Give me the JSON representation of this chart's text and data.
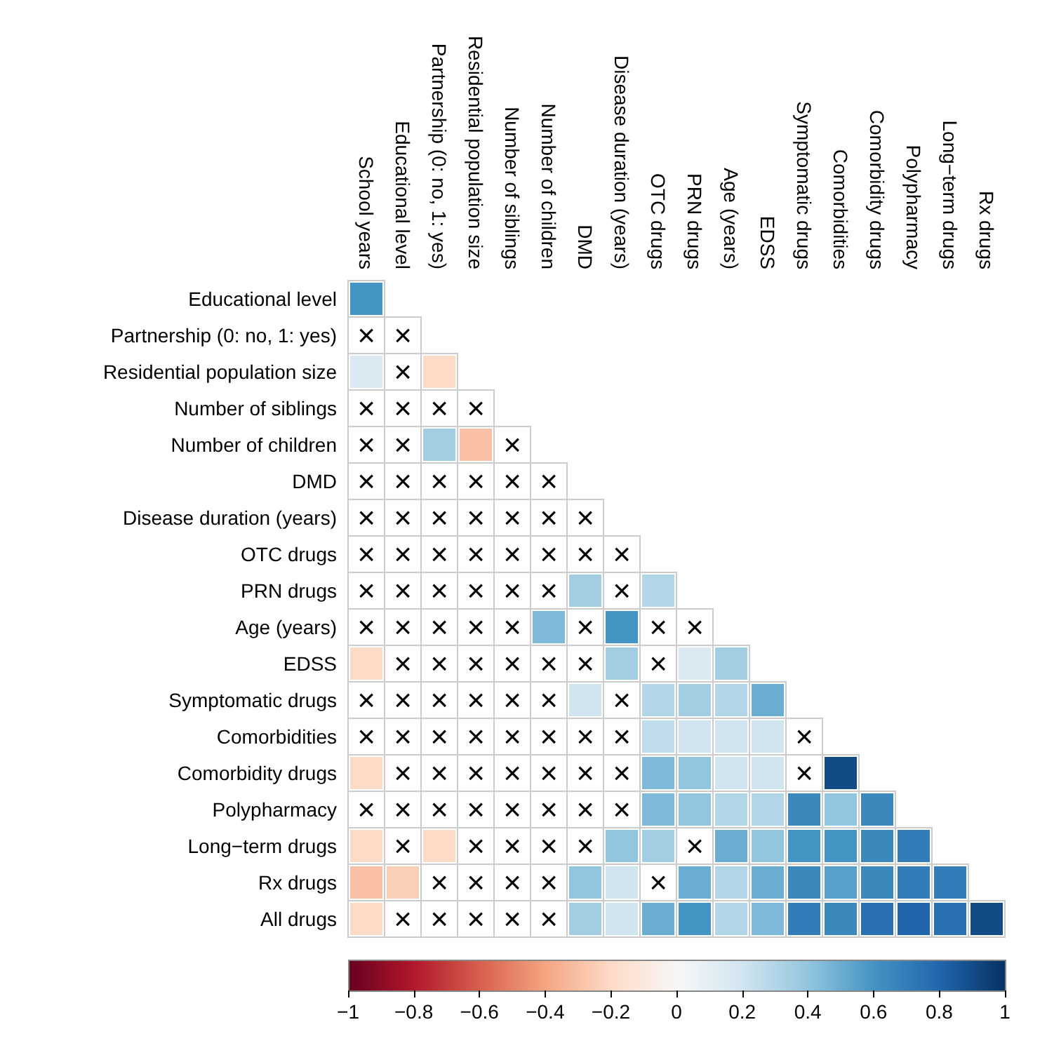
{
  "chart_data": {
    "type": "heatmap",
    "categories": [
      "School years",
      "Educational level",
      "Partnership (0: no, 1: yes)",
      "Residential population size",
      "Number of siblings",
      "Number of children",
      "DMD",
      "Disease duration (years)",
      "OTC drugs",
      "PRN drugs",
      "Age (years)",
      "EDSS",
      "Symptomatic drugs",
      "Comorbidities",
      "Comorbidity drugs",
      "Polypharmacy",
      "Long−term drugs",
      "Rx drugs"
    ],
    "y_categories": [
      "Educational level",
      "Partnership (0: no, 1: yes)",
      "Residential population size",
      "Number of siblings",
      "Number of children",
      "DMD",
      "Disease duration (years)",
      "OTC drugs",
      "PRN drugs",
      "Age (years)",
      "EDSS",
      "Symptomatic drugs",
      "Comorbidities",
      "Comorbidity drugs",
      "Polypharmacy",
      "Long−term drugs",
      "Rx drugs",
      "All drugs"
    ],
    "cells": [
      [
        0.6,
        null,
        null,
        null,
        null,
        null,
        null,
        null,
        null,
        null,
        null,
        null,
        null,
        null,
        null,
        null,
        null,
        null
      ],
      [
        null,
        null,
        null,
        null,
        null,
        null,
        null,
        null,
        null,
        null,
        null,
        null,
        null,
        null,
        null,
        null,
        null,
        null
      ],
      [
        0.15,
        null,
        -0.2,
        null,
        null,
        null,
        null,
        null,
        null,
        null,
        null,
        null,
        null,
        null,
        null,
        null,
        null,
        null
      ],
      [
        null,
        null,
        null,
        null,
        null,
        null,
        null,
        null,
        null,
        null,
        null,
        null,
        null,
        null,
        null,
        null,
        null,
        null
      ],
      [
        null,
        null,
        0.35,
        -0.3,
        null,
        null,
        null,
        null,
        null,
        null,
        null,
        null,
        null,
        null,
        null,
        null,
        null,
        null
      ],
      [
        null,
        null,
        null,
        null,
        null,
        null,
        null,
        null,
        null,
        null,
        null,
        null,
        null,
        null,
        null,
        null,
        null,
        null
      ],
      [
        null,
        null,
        null,
        null,
        null,
        null,
        null,
        null,
        null,
        null,
        null,
        null,
        null,
        null,
        null,
        null,
        null,
        null
      ],
      [
        null,
        null,
        null,
        null,
        null,
        null,
        null,
        null,
        null,
        null,
        null,
        null,
        null,
        null,
        null,
        null,
        null,
        null
      ],
      [
        null,
        null,
        null,
        null,
        null,
        null,
        0.35,
        null,
        0.3,
        null,
        null,
        null,
        null,
        null,
        null,
        null,
        null,
        null
      ],
      [
        null,
        null,
        null,
        null,
        null,
        0.45,
        null,
        0.6,
        null,
        null,
        null,
        null,
        null,
        null,
        null,
        null,
        null,
        null
      ],
      [
        -0.2,
        null,
        null,
        null,
        null,
        null,
        null,
        0.35,
        null,
        0.15,
        0.35,
        null,
        null,
        null,
        null,
        null,
        null,
        null
      ],
      [
        null,
        null,
        null,
        null,
        null,
        null,
        0.2,
        null,
        0.3,
        0.35,
        0.3,
        0.5,
        null,
        null,
        null,
        null,
        null,
        null
      ],
      [
        null,
        null,
        null,
        null,
        null,
        null,
        null,
        null,
        0.25,
        0.2,
        0.2,
        0.2,
        null,
        null,
        null,
        null,
        null,
        null
      ],
      [
        -0.2,
        null,
        null,
        null,
        null,
        null,
        null,
        null,
        0.45,
        0.4,
        0.2,
        0.2,
        null,
        0.9,
        null,
        null,
        null,
        null
      ],
      [
        null,
        null,
        null,
        null,
        null,
        null,
        null,
        null,
        0.45,
        0.4,
        0.3,
        0.3,
        0.65,
        0.4,
        0.65,
        null,
        null,
        null
      ],
      [
        -0.2,
        null,
        -0.2,
        null,
        null,
        null,
        null,
        0.4,
        0.35,
        null,
        0.5,
        0.4,
        0.6,
        0.6,
        0.65,
        0.7,
        null,
        null
      ],
      [
        -0.3,
        -0.25,
        null,
        null,
        null,
        null,
        0.4,
        0.2,
        null,
        0.5,
        0.3,
        0.5,
        0.65,
        0.55,
        0.65,
        0.7,
        0.7,
        null
      ],
      [
        -0.2,
        null,
        null,
        null,
        null,
        null,
        0.35,
        0.2,
        0.5,
        0.6,
        0.3,
        0.45,
        0.7,
        0.65,
        0.75,
        0.8,
        0.75,
        0.9
      ]
    ],
    "cell_labels": [
      [
        null,
        null,
        null,
        null,
        null,
        null,
        null,
        null,
        null,
        null,
        null,
        null,
        null,
        null,
        null,
        null,
        null,
        null
      ],
      [
        "×",
        "×",
        null,
        null,
        null,
        null,
        null,
        null,
        null,
        null,
        null,
        null,
        null,
        null,
        null,
        null,
        null,
        null
      ],
      [
        null,
        "×",
        null,
        null,
        null,
        null,
        null,
        null,
        null,
        null,
        null,
        null,
        null,
        null,
        null,
        null,
        null,
        null
      ],
      [
        "×",
        "×",
        "×",
        "×",
        null,
        null,
        null,
        null,
        null,
        null,
        null,
        null,
        null,
        null,
        null,
        null,
        null,
        null
      ],
      [
        "×",
        "×",
        null,
        null,
        "×",
        null,
        null,
        null,
        null,
        null,
        null,
        null,
        null,
        null,
        null,
        null,
        null,
        null
      ],
      [
        "×",
        "×",
        "×",
        "×",
        "×",
        "×",
        null,
        null,
        null,
        null,
        null,
        null,
        null,
        null,
        null,
        null,
        null,
        null
      ],
      [
        "×",
        "×",
        "×",
        "×",
        "×",
        "×",
        "×",
        null,
        null,
        null,
        null,
        null,
        null,
        null,
        null,
        null,
        null,
        null
      ],
      [
        "×",
        "×",
        "×",
        "×",
        "×",
        "×",
        "×",
        "×",
        null,
        null,
        null,
        null,
        null,
        null,
        null,
        null,
        null,
        null
      ],
      [
        "×",
        "×",
        "×",
        "×",
        "×",
        "×",
        null,
        "×",
        null,
        null,
        null,
        null,
        null,
        null,
        null,
        null,
        null,
        null
      ],
      [
        "×",
        "×",
        "×",
        "×",
        "×",
        null,
        "×",
        null,
        "×",
        "×",
        null,
        null,
        null,
        null,
        null,
        null,
        null,
        null
      ],
      [
        null,
        "×",
        "×",
        "×",
        "×",
        "×",
        "×",
        null,
        "×",
        null,
        null,
        null,
        null,
        null,
        null,
        null,
        null,
        null
      ],
      [
        "×",
        "×",
        "×",
        "×",
        "×",
        "×",
        null,
        "×",
        null,
        null,
        null,
        null,
        null,
        null,
        null,
        null,
        null,
        null
      ],
      [
        "×",
        "×",
        "×",
        "×",
        "×",
        "×",
        "×",
        "×",
        null,
        null,
        null,
        null,
        "×",
        null,
        null,
        null,
        null,
        null
      ],
      [
        null,
        "×",
        "×",
        "×",
        "×",
        "×",
        "×",
        "×",
        null,
        null,
        null,
        null,
        "×",
        null,
        null,
        null,
        null,
        null
      ],
      [
        "×",
        "×",
        "×",
        "×",
        "×",
        "×",
        "×",
        "×",
        null,
        null,
        null,
        null,
        null,
        null,
        null,
        null,
        null,
        null
      ],
      [
        null,
        "×",
        null,
        "×",
        "×",
        "×",
        "×",
        null,
        null,
        "×",
        null,
        null,
        null,
        null,
        null,
        null,
        null,
        null
      ],
      [
        null,
        null,
        "×",
        "×",
        "×",
        "×",
        null,
        null,
        "×",
        null,
        null,
        null,
        null,
        null,
        null,
        null,
        null,
        null
      ],
      [
        null,
        "×",
        "×",
        "×",
        "×",
        "×",
        null,
        null,
        null,
        null,
        null,
        null,
        null,
        null,
        null,
        null,
        null,
        null
      ]
    ],
    "clim": [
      -1,
      1
    ],
    "cticks": [
      {
        "value": -1,
        "label": "−1"
      },
      {
        "value": -0.8,
        "label": "−0.8"
      },
      {
        "value": -0.6,
        "label": "−0.6"
      },
      {
        "value": -0.4,
        "label": "−0.4"
      },
      {
        "value": -0.2,
        "label": "−0.2"
      },
      0,
      0.2,
      0.4,
      0.6,
      0.8,
      1
    ]
  }
}
